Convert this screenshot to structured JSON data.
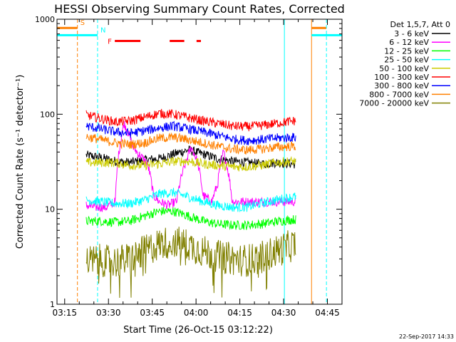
{
  "chart_data": {
    "type": "line",
    "title": "HESSI Observing Summary Count Rates, Corrected",
    "xlabel": "Start Time (26-Oct-15 03:12:22)",
    "ylabel": "Corrected Count Rate (s⁻¹ detector⁻¹)",
    "xlim_minutes": [
      0,
      97.63
    ],
    "ylim": [
      1,
      1000
    ],
    "yscale": "log",
    "x_ticks": [
      {
        "label": "03:15",
        "min": 2.63
      },
      {
        "label": "03:30",
        "min": 17.63
      },
      {
        "label": "03:45",
        "min": 32.63
      },
      {
        "label": "04:00",
        "min": 47.63
      },
      {
        "label": "04:15",
        "min": 62.63
      },
      {
        "label": "04:30",
        "min": 77.63
      },
      {
        "label": "04:45",
        "min": 92.63
      }
    ],
    "y_ticks": [
      {
        "label": "1",
        "value": 1
      },
      {
        "label": "10",
        "value": 10
      },
      {
        "label": "100",
        "value": 100
      },
      {
        "label": "1000",
        "value": 1000
      }
    ],
    "legend_header": "Det 1,5,7, Att 0",
    "legend_placement": "right",
    "data_start_min": 10.0,
    "data_end_min": 81.8,
    "series": [
      {
        "name": "3 - 6 keV",
        "color": "#000000",
        "x": [
          10,
          15,
          20,
          25,
          30,
          35,
          40,
          45,
          50,
          55,
          60,
          65,
          70,
          75,
          81
        ],
        "values": [
          37,
          35,
          32,
          31,
          33,
          34,
          38,
          42,
          38,
          34,
          32,
          31,
          30,
          31,
          30
        ]
      },
      {
        "name": "6 - 12 keV",
        "color": "#ff00ff",
        "x": [
          10,
          13,
          17,
          20,
          23,
          26,
          28,
          31,
          33,
          35,
          38,
          41,
          44,
          46,
          48,
          50,
          53,
          55,
          57,
          60
        ],
        "values": [
          11,
          10.5,
          10.5,
          12,
          80,
          45,
          38,
          30,
          14,
          12,
          11,
          12,
          30,
          45,
          32,
          14,
          12,
          18,
          40,
          12
        ]
      },
      {
        "name": "12 - 25 keV",
        "color": "#00ff00",
        "x": [
          10,
          15,
          20,
          25,
          30,
          35,
          40,
          45,
          50,
          55,
          60,
          65,
          70,
          75,
          81
        ],
        "values": [
          7.5,
          7.5,
          7.3,
          7.5,
          8.5,
          9.5,
          9.5,
          8.5,
          7.5,
          7.0,
          6.8,
          6.8,
          7.0,
          7.4,
          7.8
        ]
      },
      {
        "name": "25 - 50 keV",
        "color": "#00ffff",
        "x": [
          10,
          15,
          20,
          25,
          30,
          35,
          40,
          45,
          50,
          55,
          60,
          65,
          70,
          75,
          81
        ],
        "values": [
          12.5,
          12,
          11.5,
          11.5,
          12.5,
          14.5,
          15,
          13.5,
          12,
          11,
          10.5,
          10.5,
          11.5,
          12.5,
          13.5
        ]
      },
      {
        "name": "50 - 100 keV",
        "color": "#cccc00",
        "x": [
          10,
          15,
          20,
          25,
          30,
          35,
          40,
          45,
          50,
          55,
          60,
          65,
          70,
          75,
          81
        ],
        "values": [
          31,
          31,
          31,
          29,
          29,
          30,
          32,
          32,
          30,
          29,
          28,
          28,
          29,
          31,
          32
        ]
      },
      {
        "name": "100 - 300 keV",
        "color": "#ff0000",
        "x": [
          10,
          15,
          20,
          25,
          30,
          35,
          40,
          45,
          50,
          55,
          60,
          65,
          70,
          75,
          81
        ],
        "values": [
          98,
          90,
          83,
          85,
          93,
          102,
          100,
          92,
          85,
          80,
          75,
          74,
          76,
          80,
          85
        ]
      },
      {
        "name": "300 - 800 keV",
        "color": "#0000ff",
        "x": [
          10,
          15,
          20,
          25,
          30,
          35,
          40,
          45,
          50,
          55,
          60,
          65,
          70,
          75,
          81
        ],
        "values": [
          75,
          70,
          65,
          63,
          67,
          72,
          75,
          70,
          65,
          60,
          55,
          53,
          54,
          56,
          57
        ]
      },
      {
        "name": "800 - 7000 keV",
        "color": "#ff8000",
        "x": [
          10,
          15,
          20,
          25,
          30,
          35,
          40,
          45,
          50,
          55,
          60,
          65,
          70,
          75,
          81
        ],
        "values": [
          58,
          54,
          50,
          48,
          50,
          56,
          57,
          54,
          50,
          46,
          43,
          42,
          43,
          45,
          46
        ]
      },
      {
        "name": "7000 - 20000 keV",
        "color": "#808000",
        "x": [
          10,
          15,
          20,
          25,
          30,
          35,
          40,
          45,
          50,
          55,
          60,
          65,
          70,
          75,
          81
        ],
        "values": [
          2.8,
          2.9,
          2.8,
          3.0,
          3.6,
          4.3,
          4.6,
          4.2,
          3.6,
          3.2,
          3.0,
          2.9,
          3.1,
          3.6,
          4.2
        ]
      }
    ],
    "markers": [
      {
        "label": "S",
        "color": "#ff8000",
        "start_min": 0.0,
        "end_min": 7.0,
        "level": 810,
        "line_min": 7.0,
        "line_style": "dashed"
      },
      {
        "label": "N",
        "color": "#00ffff",
        "start_min": 0.0,
        "end_min": 13.9,
        "level": 680,
        "line_min": 13.9,
        "line_style": "dashed"
      },
      {
        "color": "#00ffff",
        "start_min": 77.9,
        "end_min": 77.9,
        "level": 0,
        "line_min": 77.9,
        "line_style": "solid"
      },
      {
        "color": "#ff8000",
        "start_min": 87.2,
        "end_min": 92.3,
        "level": 810,
        "line_min": 87.2,
        "line_style": "solid"
      },
      {
        "color": "#00ffff",
        "start_min": 87.2,
        "end_min": 97.63,
        "level": 680,
        "line_min": 92.3,
        "line_style": "dashed"
      }
    ],
    "flare": {
      "label": "F",
      "color": "#ff0000",
      "level": 590,
      "segments": [
        [
          19.8,
          28.6
        ],
        [
          38.6,
          43.6
        ],
        [
          47.8,
          49.3
        ]
      ]
    },
    "footer_date": "22-Sep-2017 14:33"
  }
}
